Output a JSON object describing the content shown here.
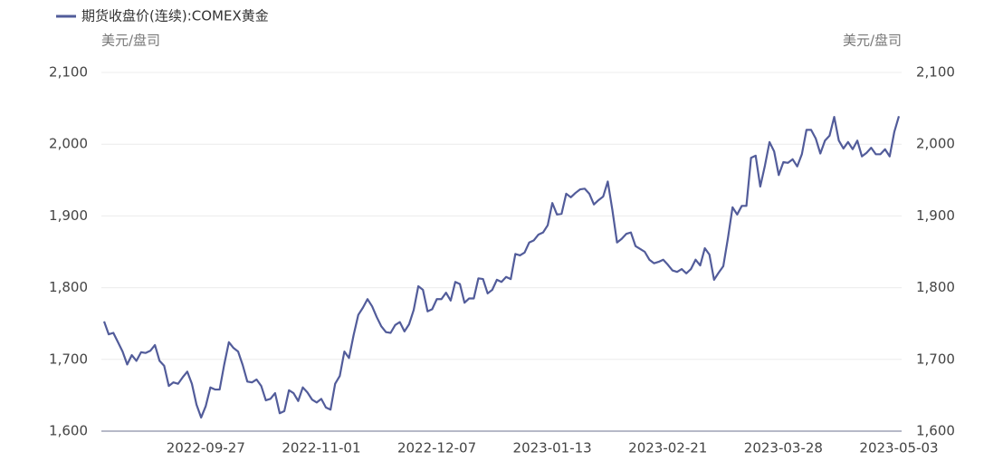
{
  "chart_data": {
    "type": "line",
    "legend_position": "top-left",
    "ylabel": "美元/盘司",
    "y2label": "美元/盘司",
    "ylim": [
      1600,
      2100
    ],
    "yticks": [
      {
        "value": 1600,
        "label": "1,600"
      },
      {
        "value": 1700,
        "label": "1,700"
      },
      {
        "value": 1800,
        "label": "1,800"
      },
      {
        "value": 1900,
        "label": "1,900"
      },
      {
        "value": 2000,
        "label": "2,000"
      },
      {
        "value": 2100,
        "label": "2,100"
      }
    ],
    "y2lim": [
      1600,
      2100
    ],
    "y2ticks": [
      {
        "value": 1600,
        "label": "1,600"
      },
      {
        "value": 1700,
        "label": "1,700"
      },
      {
        "value": 1800,
        "label": "1,800"
      },
      {
        "value": 1900,
        "label": "1,900"
      },
      {
        "value": 2000,
        "label": "2,000"
      },
      {
        "value": 2100,
        "label": "2,100"
      }
    ],
    "grid": true,
    "categories": [
      null,
      null,
      null,
      null,
      null,
      null,
      null,
      null,
      null,
      null,
      null,
      null,
      null,
      null,
      null,
      null,
      null,
      null,
      null,
      null,
      null,
      null,
      "2022-09-27",
      null,
      null,
      null,
      null,
      null,
      null,
      null,
      null,
      null,
      null,
      null,
      null,
      null,
      null,
      null,
      null,
      null,
      null,
      null,
      null,
      null,
      null,
      null,
      null,
      "2022-11-01",
      null,
      null,
      null,
      null,
      null,
      null,
      null,
      null,
      null,
      null,
      null,
      null,
      null,
      null,
      null,
      null,
      null,
      null,
      null,
      null,
      null,
      null,
      null,
      null,
      "2022-12-07",
      null,
      null,
      null,
      null,
      null,
      null,
      null,
      null,
      null,
      null,
      null,
      null,
      null,
      null,
      null,
      null,
      null,
      null,
      null,
      null,
      null,
      null,
      null,
      null,
      "2023-01-13",
      null,
      null,
      null,
      null,
      null,
      null,
      null,
      null,
      null,
      null,
      null,
      null,
      null,
      null,
      null,
      null,
      null,
      null,
      null,
      null,
      null,
      null,
      null,
      null,
      "2023-02-21",
      null,
      null,
      null,
      null,
      null,
      null,
      null,
      null,
      null,
      null,
      null,
      null,
      null,
      null,
      null,
      null,
      null,
      null,
      null,
      null,
      null,
      null,
      null,
      null,
      "2023-03-28",
      null,
      null,
      null,
      null,
      null,
      null,
      null,
      null,
      null,
      null,
      null,
      null,
      null,
      null,
      null,
      null,
      null,
      null,
      null,
      null,
      null,
      null,
      null,
      null,
      "2023-05-03"
    ],
    "series": [
      {
        "name": "期货收盘价(连续):COMEX黄金",
        "color": "#525c9a",
        "values": [
          1753,
          1735,
          1737,
          1724,
          1711,
          1693,
          1706,
          1698,
          1710,
          1709,
          1712,
          1720,
          1698,
          1691,
          1663,
          1668,
          1666,
          1675,
          1683,
          1666,
          1637,
          1619,
          1635,
          1661,
          1658,
          1658,
          1693,
          1724,
          1716,
          1711,
          1692,
          1669,
          1668,
          1672,
          1663,
          1643,
          1645,
          1653,
          1625,
          1628,
          1657,
          1653,
          1642,
          1661,
          1654,
          1644,
          1640,
          1645,
          1633,
          1630,
          1666,
          1677,
          1711,
          1702,
          1734,
          1762,
          1772,
          1784,
          1774,
          1759,
          1746,
          1738,
          1737,
          1748,
          1752,
          1739,
          1749,
          1769,
          1802,
          1797,
          1767,
          1770,
          1784,
          1784,
          1793,
          1782,
          1808,
          1805,
          1779,
          1785,
          1785,
          1813,
          1812,
          1792,
          1797,
          1811,
          1808,
          1815,
          1812,
          1847,
          1845,
          1849,
          1863,
          1866,
          1874,
          1877,
          1887,
          1918,
          1902,
          1903,
          1931,
          1926,
          1932,
          1937,
          1938,
          1931,
          1916,
          1922,
          1927,
          1948,
          1908,
          1863,
          1868,
          1875,
          1877,
          1858,
          1854,
          1850,
          1839,
          1834,
          1836,
          1839,
          1832,
          1824,
          1822,
          1826,
          1820,
          1826,
          1839,
          1831,
          1855,
          1846,
          1811,
          1821,
          1830,
          1869,
          1912,
          1902,
          1914,
          1914,
          1981,
          1984,
          1941,
          1970,
          2003,
          1990,
          1957,
          1975,
          1974,
          1979,
          1969,
          1986,
          2020,
          2020,
          2008,
          1987,
          2005,
          2012,
          2038,
          2005,
          1994,
          2003,
          1993,
          2005,
          1983,
          1988,
          1995,
          1986,
          1986,
          1993,
          1983,
          2017,
          2039
        ]
      }
    ]
  }
}
